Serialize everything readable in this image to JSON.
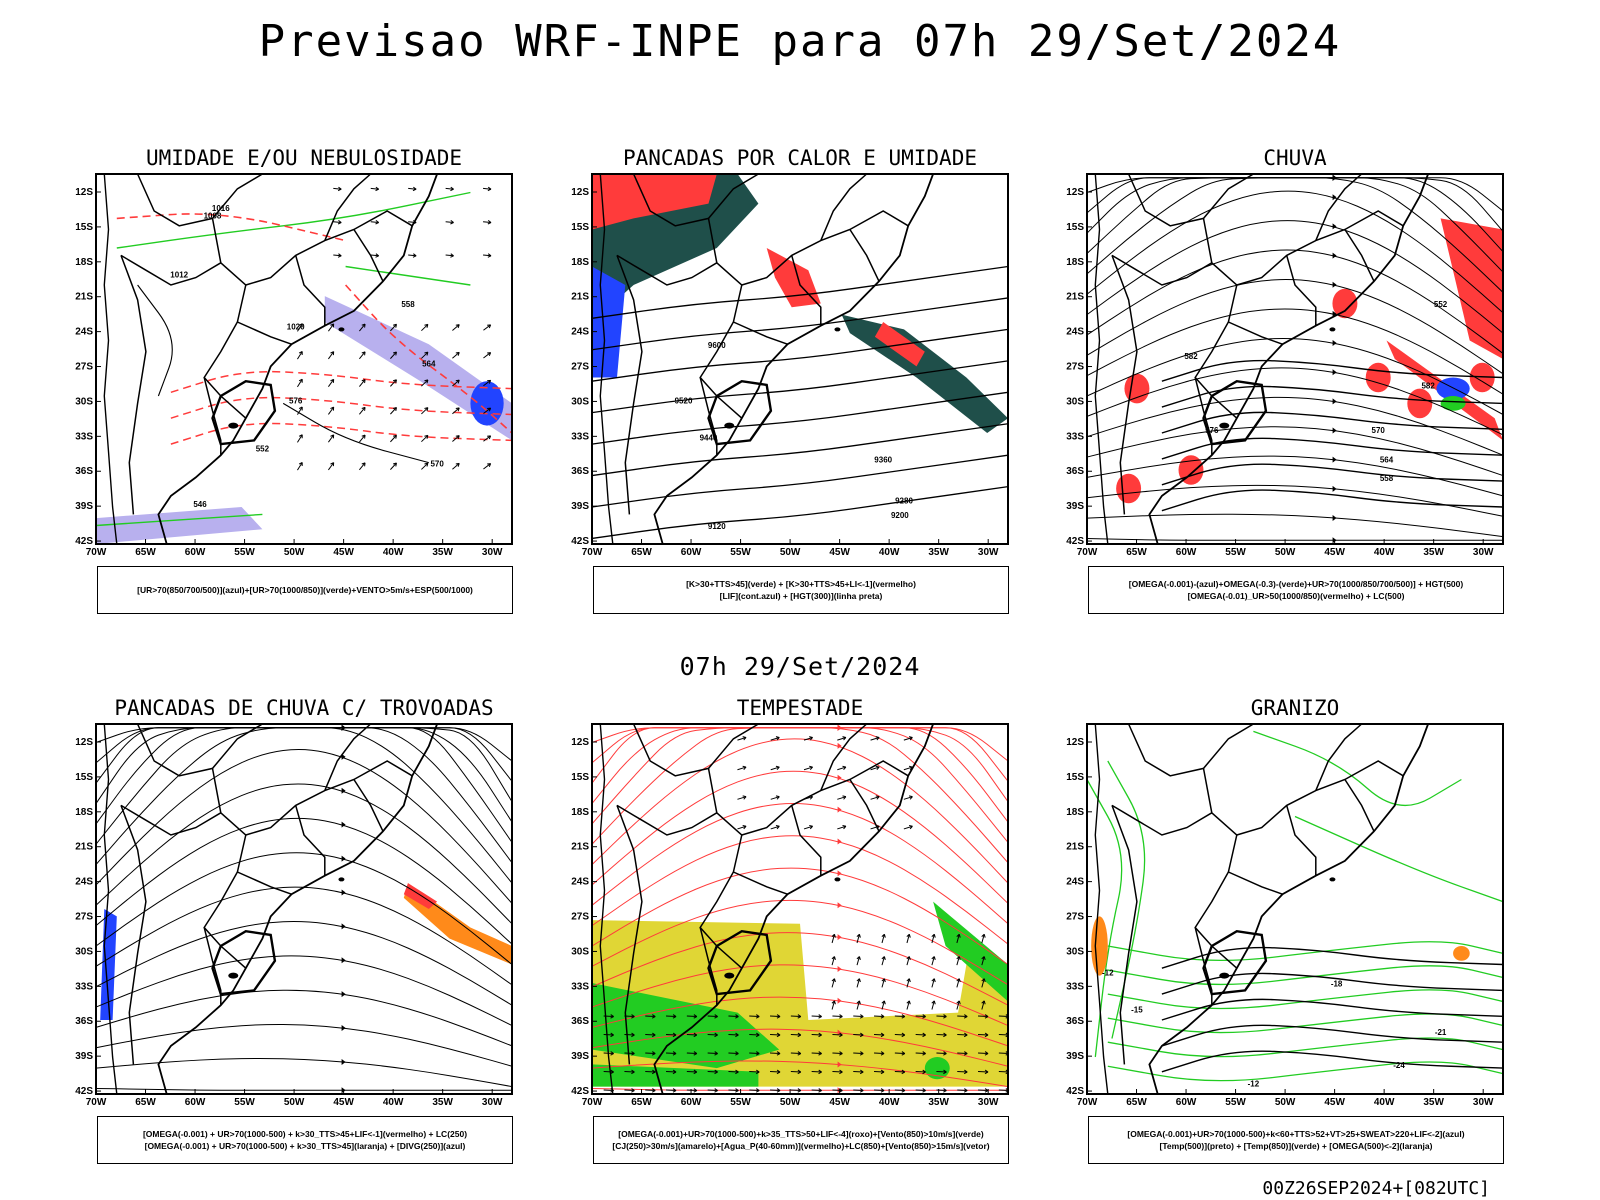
{
  "header": {
    "title": "Previsao WRF-INPE  para 07h 29/Set/2024",
    "subtitle": "07h 29/Set/2024",
    "footer": "00Z26SEP2024+[082UTC]"
  },
  "axes": {
    "lat_labels": [
      "12S",
      "15S",
      "18S",
      "21S",
      "24S",
      "27S",
      "30S",
      "33S",
      "36S",
      "39S",
      "42S"
    ],
    "lon_labels": [
      "70W",
      "65W",
      "60W",
      "55W",
      "50W",
      "45W",
      "40W",
      "35W",
      "30W"
    ]
  },
  "colors": {
    "red": "#ff3b3b",
    "green": "#22cc22",
    "blue": "#2244ff",
    "lavender": "#b8b0ee",
    "darkteal": "#1f4f4a",
    "yellow": "#e0d635",
    "orange": "#ff8a1a"
  },
  "panels": [
    {
      "id": "umidade",
      "title": "UMIDADE E/OU NEBULOSIDADE",
      "legend": [
        "[UR>70(850/700/500)](azul)+[UR>70(1000/850)](verde)+VENTO>5m/s+ESP(500/1000)"
      ],
      "contour_labels": [
        "1008",
        "1016",
        "1012",
        "1020",
        "576",
        "570",
        "564",
        "558",
        "552",
        "546"
      ]
    },
    {
      "id": "pancadas-calor",
      "title": "PANCADAS POR CALOR E UMIDADE",
      "legend": [
        "[K>30+TTS>45](verde) + [K>30+TTS>45+LI<-1](vermelho)",
        "[LIF](cont.azul) + [HGT(300)](linha preta)"
      ],
      "contour_labels": [
        "9600",
        "9520",
        "9440",
        "9360",
        "9280",
        "9200",
        "9120"
      ]
    },
    {
      "id": "chuva",
      "title": "CHUVA",
      "legend": [
        "[OMEGA(-0.001)-(azul)+OMEGA(-0.3)-(verde)+UR>70(1000/850/700/500)] + HGT(500)",
        "[OMEGA(-0.01)_UR>50(1000/850)(vermelho) + LC(500)"
      ],
      "contour_labels": [
        "582",
        "576",
        "570",
        "564",
        "558",
        "552"
      ]
    },
    {
      "id": "pancadas-trovoadas",
      "title": "PANCADAS DE CHUVA C/ TROVOADAS",
      "legend": [
        "[OMEGA(-0.001) + UR>70(1000-500) + k>30_TTS>45+LIF<-1](vermelho) + LC(250)",
        "[OMEGA(-0.001) + UR>70(1000-500) + k>30_TTS>45](laranja) + [DIVG(250)](azul)"
      ],
      "contour_labels": []
    },
    {
      "id": "tempestade",
      "title": "TEMPESTADE",
      "legend": [
        "[OMEGA(-0.001)+UR>70(1000-500)+k>35_TTS>50+LIF<-4](roxo)+[Vento(850)>10m/s](verde)",
        "[CJ(250)>30m/s](amarelo)+[Agua_P(40-60mm)](vermelho)+LC(850)+[Vento(850)>15m/s](vetor)"
      ],
      "contour_labels": []
    },
    {
      "id": "granizo",
      "title": "GRANIZO",
      "legend": [
        "[OMEGA(-0.001)+UR>70(1000-500)+k<60+TTS>52+VT>25+SWEAT>220+LIF<-2](azul)",
        "[Temp(500)](preto) + [Temp(850)](verde) + [OMEGA(500)<-2](laranja)"
      ],
      "contour_labels": [
        "-12",
        "-15",
        "-18",
        "-21",
        "-24"
      ]
    }
  ]
}
